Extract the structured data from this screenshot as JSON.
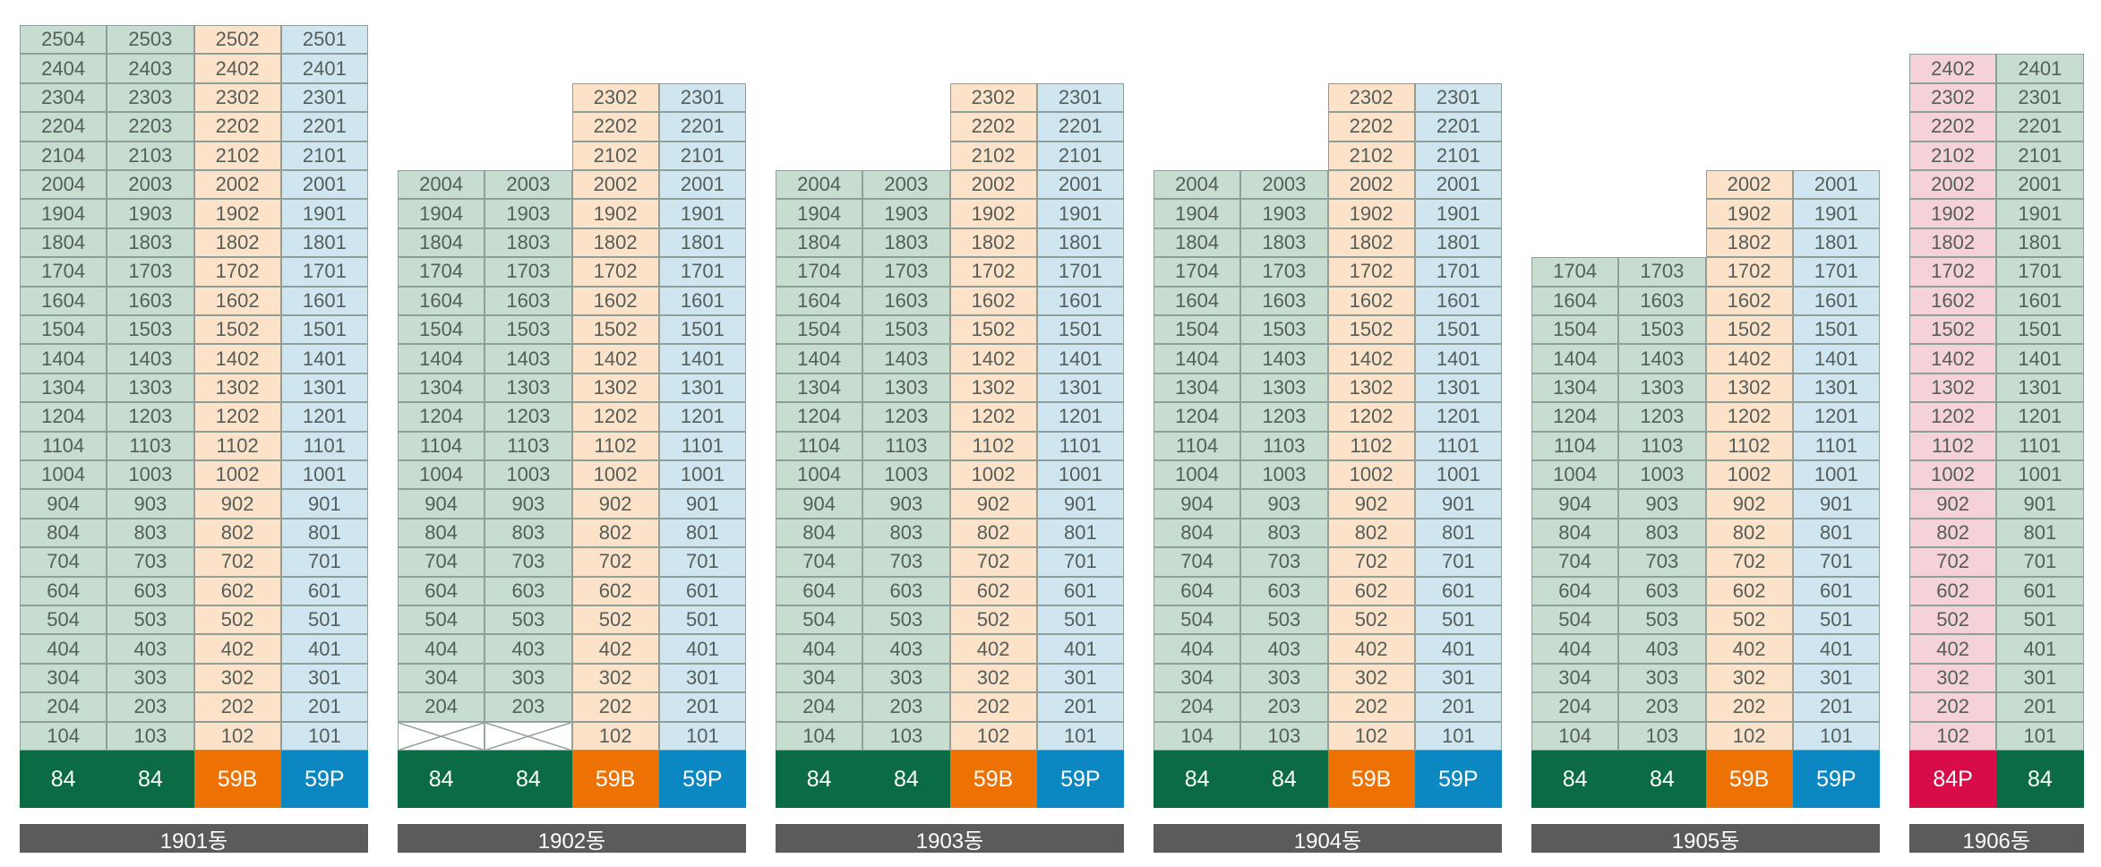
{
  "colors": {
    "cell_84": "#c6ddd0",
    "cell_59B": "#fbe2c9",
    "cell_59P": "#cfe6f1",
    "cell_84P": "#f5d2d7",
    "type_84": "#0a6b45",
    "type_59B": "#ee7203",
    "type_59P": "#0b87c1",
    "type_84P": "#d80d47",
    "label_bg": "#5b5b5b"
  },
  "buildings": [
    {
      "name": "1901동",
      "x": 0,
      "columns": [
        {
          "type": "84",
          "units": [
            "2504",
            "2404",
            "2304",
            "2204",
            "2104",
            "2004",
            "1904",
            "1804",
            "1704",
            "1604",
            "1504",
            "1404",
            "1304",
            "1204",
            "1104",
            "1004",
            "904",
            "804",
            "704",
            "604",
            "504",
            "404",
            "304",
            "204",
            "104"
          ]
        },
        {
          "type": "84",
          "units": [
            "2503",
            "2403",
            "2303",
            "2203",
            "2103",
            "2003",
            "1903",
            "1803",
            "1703",
            "1603",
            "1503",
            "1403",
            "1303",
            "1203",
            "1103",
            "1003",
            "903",
            "803",
            "703",
            "603",
            "503",
            "403",
            "303",
            "203",
            "103"
          ]
        },
        {
          "type": "59B",
          "units": [
            "2502",
            "2402",
            "2302",
            "2202",
            "2102",
            "2002",
            "1902",
            "1802",
            "1702",
            "1602",
            "1502",
            "1402",
            "1302",
            "1202",
            "1102",
            "1002",
            "902",
            "802",
            "702",
            "602",
            "502",
            "402",
            "302",
            "202",
            "102"
          ]
        },
        {
          "type": "59P",
          "units": [
            "2501",
            "2401",
            "2301",
            "2201",
            "2101",
            "2001",
            "1901",
            "1801",
            "1701",
            "1601",
            "1501",
            "1401",
            "1301",
            "1201",
            "1101",
            "1001",
            "901",
            "801",
            "701",
            "601",
            "501",
            "401",
            "301",
            "201",
            "101"
          ]
        }
      ]
    },
    {
      "name": "1902동",
      "columns": [
        {
          "type": "84",
          "units": [
            "2004",
            "1904",
            "1804",
            "1704",
            "1604",
            "1504",
            "1404",
            "1304",
            "1204",
            "1104",
            "1004",
            "904",
            "804",
            "704",
            "604",
            "504",
            "404",
            "304",
            "204",
            ""
          ]
        },
        {
          "type": "84",
          "units": [
            "2003",
            "1903",
            "1803",
            "1703",
            "1603",
            "1503",
            "1403",
            "1303",
            "1203",
            "1103",
            "1003",
            "903",
            "803",
            "703",
            "603",
            "503",
            "403",
            "303",
            "203",
            ""
          ]
        },
        {
          "type": "59B",
          "units": [
            "2302",
            "2202",
            "2102",
            "2002",
            "1902",
            "1802",
            "1702",
            "1602",
            "1502",
            "1402",
            "1302",
            "1202",
            "1102",
            "1002",
            "902",
            "802",
            "702",
            "602",
            "502",
            "402",
            "302",
            "202",
            "102"
          ]
        },
        {
          "type": "59P",
          "units": [
            "2301",
            "2201",
            "2101",
            "2001",
            "1901",
            "1801",
            "1701",
            "1601",
            "1501",
            "1401",
            "1301",
            "1201",
            "1101",
            "1001",
            "901",
            "801",
            "701",
            "601",
            "501",
            "401",
            "301",
            "201",
            "101"
          ]
        }
      ]
    },
    {
      "name": "1903동",
      "columns": [
        {
          "type": "84",
          "units": [
            "2004",
            "1904",
            "1804",
            "1704",
            "1604",
            "1504",
            "1404",
            "1304",
            "1204",
            "1104",
            "1004",
            "904",
            "804",
            "704",
            "604",
            "504",
            "404",
            "304",
            "204",
            "104"
          ]
        },
        {
          "type": "84",
          "units": [
            "2003",
            "1903",
            "1803",
            "1703",
            "1603",
            "1503",
            "1403",
            "1303",
            "1203",
            "1103",
            "1003",
            "903",
            "803",
            "703",
            "603",
            "503",
            "403",
            "303",
            "203",
            "103"
          ]
        },
        {
          "type": "59B",
          "units": [
            "2302",
            "2202",
            "2102",
            "2002",
            "1902",
            "1802",
            "1702",
            "1602",
            "1502",
            "1402",
            "1302",
            "1202",
            "1102",
            "1002",
            "902",
            "802",
            "702",
            "602",
            "502",
            "402",
            "302",
            "202",
            "102"
          ]
        },
        {
          "type": "59P",
          "units": [
            "2301",
            "2201",
            "2101",
            "2001",
            "1901",
            "1801",
            "1701",
            "1601",
            "1501",
            "1401",
            "1301",
            "1201",
            "1101",
            "1001",
            "901",
            "801",
            "701",
            "601",
            "501",
            "401",
            "301",
            "201",
            "101"
          ]
        }
      ]
    },
    {
      "name": "1904동",
      "columns": [
        {
          "type": "84",
          "units": [
            "2004",
            "1904",
            "1804",
            "1704",
            "1604",
            "1504",
            "1404",
            "1304",
            "1204",
            "1104",
            "1004",
            "904",
            "804",
            "704",
            "604",
            "504",
            "404",
            "304",
            "204",
            "104"
          ]
        },
        {
          "type": "84",
          "units": [
            "2003",
            "1903",
            "1803",
            "1703",
            "1603",
            "1503",
            "1403",
            "1303",
            "1203",
            "1103",
            "1003",
            "903",
            "803",
            "703",
            "603",
            "503",
            "403",
            "303",
            "203",
            "103"
          ]
        },
        {
          "type": "59B",
          "units": [
            "2302",
            "2202",
            "2102",
            "2002",
            "1902",
            "1802",
            "1702",
            "1602",
            "1502",
            "1402",
            "1302",
            "1202",
            "1102",
            "1002",
            "902",
            "802",
            "702",
            "602",
            "502",
            "402",
            "302",
            "202",
            "102"
          ]
        },
        {
          "type": "59P",
          "units": [
            "2301",
            "2201",
            "2101",
            "2001",
            "1901",
            "1801",
            "1701",
            "1601",
            "1501",
            "1401",
            "1301",
            "1201",
            "1101",
            "1001",
            "901",
            "801",
            "701",
            "601",
            "501",
            "401",
            "301",
            "201",
            "101"
          ]
        }
      ]
    },
    {
      "name": "1905동",
      "columns": [
        {
          "type": "84",
          "units": [
            "1704",
            "1604",
            "1504",
            "1404",
            "1304",
            "1204",
            "1104",
            "1004",
            "904",
            "804",
            "704",
            "604",
            "504",
            "404",
            "304",
            "204",
            "104"
          ]
        },
        {
          "type": "84",
          "units": [
            "1703",
            "1603",
            "1503",
            "1403",
            "1303",
            "1203",
            "1103",
            "1003",
            "903",
            "803",
            "703",
            "603",
            "503",
            "403",
            "303",
            "203",
            "103"
          ]
        },
        {
          "type": "59B",
          "units": [
            "2002",
            "1902",
            "1802",
            "1702",
            "1602",
            "1502",
            "1402",
            "1302",
            "1202",
            "1102",
            "1002",
            "902",
            "802",
            "702",
            "602",
            "502",
            "402",
            "302",
            "202",
            "102"
          ]
        },
        {
          "type": "59P",
          "units": [
            "2001",
            "1901",
            "1801",
            "1701",
            "1601",
            "1501",
            "1401",
            "1301",
            "1201",
            "1101",
            "1001",
            "901",
            "801",
            "701",
            "601",
            "501",
            "401",
            "301",
            "201",
            "101"
          ]
        }
      ]
    },
    {
      "name": "1906동",
      "columns": [
        {
          "type": "84P",
          "units": [
            "2402",
            "2302",
            "2202",
            "2102",
            "2002",
            "1902",
            "1802",
            "1702",
            "1602",
            "1502",
            "1402",
            "1302",
            "1202",
            "1102",
            "1002",
            "902",
            "802",
            "702",
            "602",
            "502",
            "402",
            "302",
            "202",
            "102"
          ]
        },
        {
          "type": "84",
          "units": [
            "2401",
            "2301",
            "2201",
            "2101",
            "2001",
            "1901",
            "1801",
            "1701",
            "1601",
            "1501",
            "1401",
            "1301",
            "1201",
            "1101",
            "1001",
            "901",
            "801",
            "701",
            "601",
            "501",
            "401",
            "301",
            "201",
            "101"
          ]
        }
      ]
    }
  ]
}
